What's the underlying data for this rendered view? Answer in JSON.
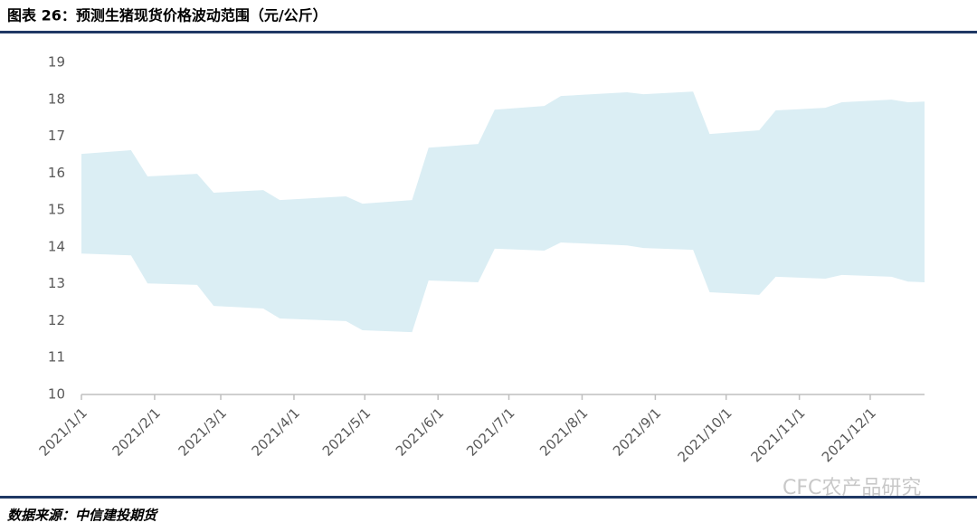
{
  "chart_data": {
    "type": "area_range",
    "title": "图表 26：预测生猪现货价格波动范围（元/公斤）",
    "source": "数据来源：中信建投期货",
    "watermark": "CFC农产品研究",
    "color": "#dbeef4",
    "x": [
      "2021/1/1",
      "2021/1/22",
      "2021/1/29",
      "2021/2/19",
      "2021/2/26",
      "2021/3/19",
      "2021/3/26",
      "2021/4/23",
      "2021/4/30",
      "2021/5/21",
      "2021/5/28",
      "2021/6/18",
      "2021/6/25",
      "2021/7/16",
      "2021/7/23",
      "2021/8/20",
      "2021/8/27",
      "2021/9/17",
      "2021/9/24",
      "2021/10/15",
      "2021/10/22",
      "2021/11/12",
      "2021/11/19",
      "2021/12/10",
      "2021/12/17",
      "2021/12/24"
    ],
    "high": [
      16.52,
      16.62,
      15.91,
      15.98,
      15.47,
      15.54,
      15.27,
      15.37,
      15.17,
      15.27,
      16.69,
      16.79,
      17.72,
      17.82,
      18.09,
      18.19,
      18.14,
      18.21,
      17.06,
      17.16,
      17.7,
      17.77,
      17.92,
      17.99,
      17.92,
      17.94
    ],
    "low": [
      13.82,
      13.77,
      13.01,
      12.97,
      12.4,
      12.33,
      12.06,
      11.99,
      11.74,
      11.69,
      13.09,
      13.04,
      13.95,
      13.9,
      14.12,
      14.04,
      13.97,
      13.92,
      12.77,
      12.7,
      13.19,
      13.14,
      13.24,
      13.19,
      13.06,
      13.04
    ],
    "xlim": [
      "2021/1/1",
      "2021/12/24"
    ],
    "xticks": [
      "2021/1/1",
      "2021/2/1",
      "2021/3/1",
      "2021/4/1",
      "2021/5/1",
      "2021/6/1",
      "2021/7/1",
      "2021/8/1",
      "2021/9/1",
      "2021/10/1",
      "2021/11/1",
      "2021/12/1"
    ],
    "ylim": [
      10,
      19
    ],
    "yticks": [
      10,
      11,
      12,
      13,
      14,
      15,
      16,
      17,
      18,
      19
    ],
    "grid": false
  }
}
